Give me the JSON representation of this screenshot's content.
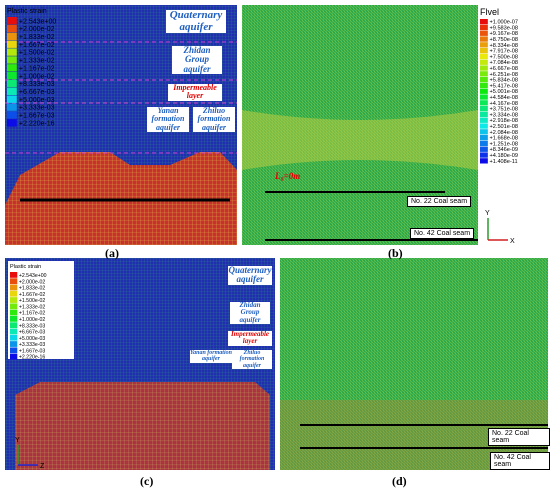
{
  "panels": [
    {
      "label": "(a)",
      "legend": {
        "title": "Plastic strain",
        "entries": [
          "+2.543e+00",
          "+2.000e-02",
          "+1.833e-02",
          "+1.667e-02",
          "+1.500e-02",
          "+1.333e-02",
          "+1.167e-02",
          "+1.000e-02",
          "+8.333e-03",
          "+6.667e-03",
          "+5.000e-03",
          "+3.333e-03",
          "+1.667e-03",
          "+2.220e-16"
        ]
      },
      "annotations": [
        "Quaternary aquifer",
        "Zhidan Group aquifer",
        "Impermeable layer",
        "Yanan formation aquifer",
        "Zhiluo formation aquifer"
      ]
    },
    {
      "label": "(b)",
      "legend": {
        "title": "Flvel",
        "entries": [
          "+1.000e-07",
          "+9.583e-08",
          "+9.167e-08",
          "+8.750e-08",
          "+8.334e-08",
          "+7.917e-08",
          "+7.500e-08",
          "+7.084e-08",
          "+6.667e-08",
          "+6.251e-08",
          "+5.834e-08",
          "+5.417e-08",
          "+5.001e-08",
          "+4.584e-08",
          "+4.167e-08",
          "+3.751e-08",
          "+3.334e-08",
          "+2.918e-08",
          "+2.501e-08",
          "+2.084e-08",
          "+1.668e-08",
          "+1.251e-08",
          "+8.346e-09",
          "+4.180e-09",
          "+1.408e-11"
        ]
      },
      "annotations": [
        "L₀=0m",
        "No. 22 Coal seam",
        "No. 42 Coal seam"
      ],
      "axes": [
        "Y",
        "X"
      ]
    },
    {
      "label": "(c)",
      "legend": {
        "title": "Plastic strain",
        "entries": [
          "+2.543e+00",
          "+2.000e-02",
          "+1.833e-02",
          "+1.667e-02",
          "+1.500e-02",
          "+1.333e-02",
          "+1.167e-02",
          "+1.000e-02",
          "+8.333e-03",
          "+6.667e-03",
          "+5.000e-03",
          "+3.333e-03",
          "+1.667e-03",
          "+2.220e-16"
        ]
      },
      "annotations": [
        "Quaternary aquifer",
        "Zhidan Group aquifer",
        "Impermeable layer",
        "Yanan formation aquifer",
        "Zhiluo formation aquifer"
      ],
      "axes": [
        "Y",
        "Z"
      ]
    },
    {
      "label": "(d)",
      "annotations": [
        "No. 22 Coal seam",
        "No. 42 Coal seam"
      ]
    }
  ]
}
